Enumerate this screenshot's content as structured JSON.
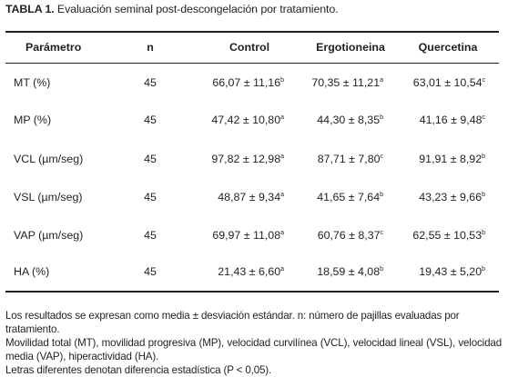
{
  "caption": {
    "label": "TABLA 1.",
    "text": "Evaluación seminal post-descongelación por tratamiento."
  },
  "table": {
    "headers": {
      "param": "Parámetro",
      "n": "n",
      "control": "Control",
      "ergo": "Ergotioneina",
      "querc": "Quercetina"
    },
    "rows": [
      {
        "param": "MT (%)",
        "n": "45",
        "control": "66,07 ± 11,16",
        "control_sup": "b",
        "ergo": "70,35 ± 11,21",
        "ergo_sup": "a",
        "querc": "63,01 ± 10,54",
        "querc_sup": "c"
      },
      {
        "param": "MP (%)",
        "n": "45",
        "control": "47,42 ± 10,80",
        "control_sup": "a",
        "ergo": "44,30 ± 8,35",
        "ergo_sup": "b",
        "querc": "41,16 ± 9,48",
        "querc_sup": "c"
      },
      {
        "param": "VCL (µm/seg)",
        "n": "45",
        "control": "97,82 ± 12,98",
        "control_sup": "a",
        "ergo": "87,71 ± 7,80",
        "ergo_sup": "c",
        "querc": "91,91 ± 8,92",
        "querc_sup": "b"
      },
      {
        "param": "VSL (µm/seg)",
        "n": "45",
        "control": "48,87 ± 9,34",
        "control_sup": "a",
        "ergo": "41,65 ± 7,64",
        "ergo_sup": "b",
        "querc": "43,23 ± 9,66",
        "querc_sup": "b"
      },
      {
        "param": "VAP (µm/seg)",
        "n": "45",
        "control": "69,97 ± 11,08",
        "control_sup": "a",
        "ergo": "60,76 ± 8,37",
        "ergo_sup": "c",
        "querc": "62,55 ± 10,53",
        "querc_sup": "b"
      },
      {
        "param": "HA (%)",
        "n": "45",
        "control": "21,43 ± 6,60",
        "control_sup": "a",
        "ergo": "18,59 ± 4,08",
        "ergo_sup": "b",
        "querc": "19,43 ± 5,20",
        "querc_sup": "b"
      }
    ]
  },
  "notes": {
    "line1": "Los resultados se expresan como media ± desviación estándar. n: número de pajillas evaluadas por tratamiento.",
    "line2": "Movilidad total (MT), movilidad progresiva (MP), velocidad curvilínea (VCL), velocidad lineal (VSL), velocidad media (VAP), hiperactividad (HA).",
    "line3": "Letras diferentes denotan diferencia estadística (P < 0,05)."
  }
}
